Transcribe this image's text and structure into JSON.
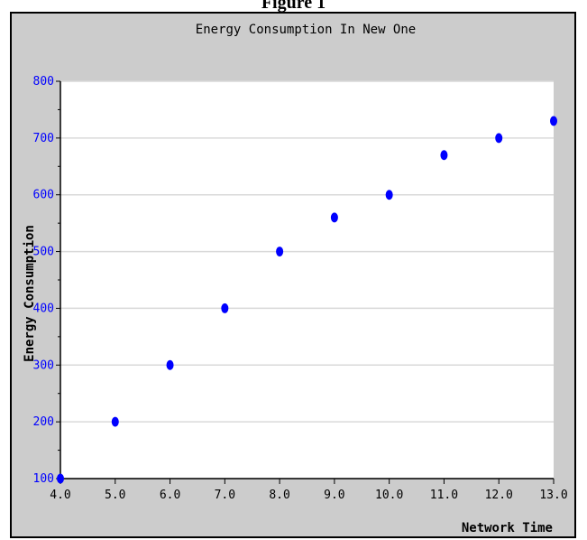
{
  "figure": {
    "caption": "Figure 1"
  },
  "chart_data": {
    "type": "scatter",
    "title": "Energy Consumption In New One",
    "xlabel": "Network Time",
    "ylabel": "Energy Consumption",
    "xlim": [
      4.0,
      13.0
    ],
    "ylim": [
      100,
      800
    ],
    "xticks": [
      "4.0",
      "5.0",
      "6.0",
      "7.0",
      "8.0",
      "9.0",
      "10.0",
      "11.0",
      "12.0",
      "13.0"
    ],
    "yticks": [
      "100",
      "200",
      "300",
      "400",
      "500",
      "600",
      "700",
      "800"
    ],
    "grid": true,
    "series": [
      {
        "x": [
          4.0,
          5.0,
          6.0,
          7.0,
          8.0,
          9.0,
          10.0,
          11.0,
          12.0,
          13.0
        ],
        "y": [
          100,
          200,
          300,
          400,
          500,
          560,
          600,
          670,
          700,
          730
        ]
      }
    ]
  },
  "colors": {
    "marker": "#0000ff",
    "y_tick_labels": "#0000ff",
    "plot_background": "#ffffff",
    "frame_background": "#cccccc",
    "gridline": "#d9d9d9"
  }
}
